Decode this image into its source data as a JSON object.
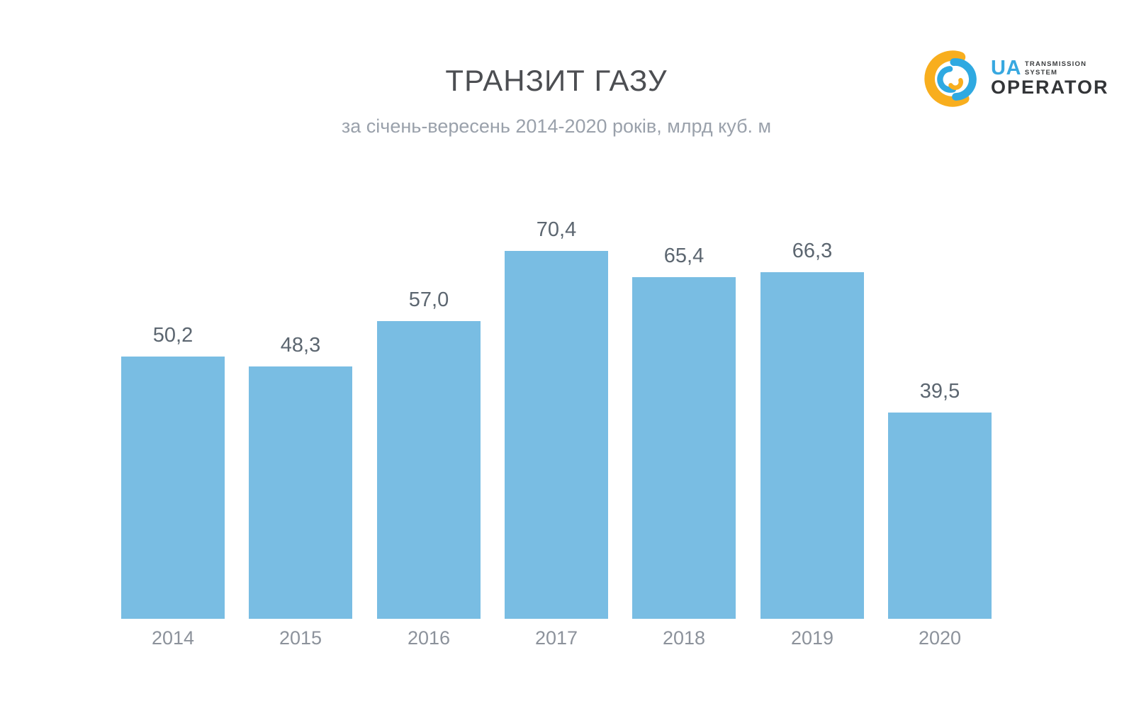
{
  "header": {
    "title": "ТРАНЗИТ ГАЗУ",
    "subtitle": "за січень-вересень 2014-2020 років, млрд куб. м"
  },
  "logo": {
    "ua": "UA",
    "line1": "TRANSMISSION",
    "line2": "SYSTEM",
    "operator": "OPERATOR",
    "colors": {
      "yellow": "#f8ae1e",
      "blue": "#2fa9e1",
      "text": "#333538"
    }
  },
  "chart_data": {
    "type": "bar",
    "title": "ТРАНЗИТ ГАЗУ",
    "subtitle": "за січень-вересень 2014-2020 років, млрд куб. м",
    "categories": [
      "2014",
      "2015",
      "2016",
      "2017",
      "2018",
      "2019",
      "2020"
    ],
    "values": [
      50.2,
      48.3,
      57.0,
      70.4,
      65.4,
      66.3,
      39.5
    ],
    "value_labels": [
      "50,2",
      "48,3",
      "57,0",
      "70,4",
      "65,4",
      "66,3",
      "39,5"
    ],
    "xlabel": "",
    "ylabel": "млрд куб. м",
    "ylim": [
      0,
      75
    ],
    "grid": false,
    "legend": false,
    "bar_color": "#79bde3",
    "value_label_color": "#5c6670",
    "category_label_color": "#8c929b"
  }
}
